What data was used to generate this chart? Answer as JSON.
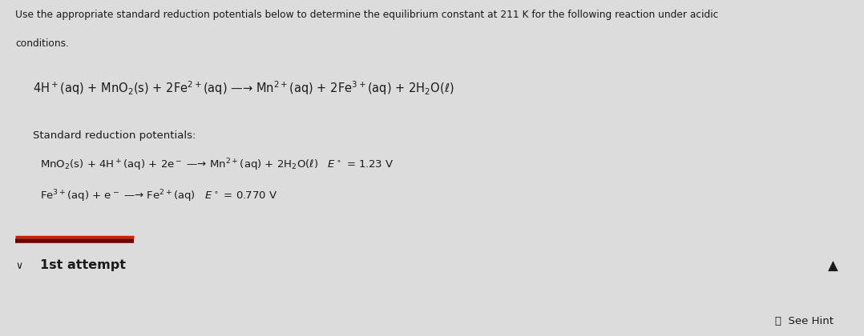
{
  "bg_top": "#dcdcdc",
  "bg_bottom": "#d2d2d2",
  "panel_top_color": "#e8e8e8",
  "panel_bottom_color": "#d8d8d8",
  "header_text_line1": "Use the appropriate standard reduction potentials below to determine the equilibrium constant at 211 K for the following reaction under acidic",
  "header_text_line2": "conditions.",
  "main_reaction": "4H$^+$(aq) + MnO$_2$(s) + 2Fe$^{2+}$(aq) —→ Mn$^{2+}$(aq) + 2Fe$^{3+}$(aq) + 2H$_2$O(ℓ)",
  "std_label": "Standard reduction potentials:",
  "reduction1": "MnO$_2$(s) + 4H$^+$(aq) + 2e$^-$ —→ Mn$^{2+}$(aq) + 2H$_2$O(ℓ)   $E^\\circ$ = 1.23 V",
  "reduction2": "Fe$^{3+}$(aq) + e$^-$ —→ Fe$^{2+}$(aq)   $E^\\circ$ = 0.770 V",
  "attempt_label": "1st attempt",
  "see_hint": "⤧  See Hint",
  "divider_color1": "#6b0000",
  "divider_color2": "#cc2200",
  "text_color": "#1a1a1a",
  "header_fontsize": 8.8,
  "body_fontsize": 10.5,
  "small_fontsize": 9.5,
  "attempt_fontsize": 11.5
}
